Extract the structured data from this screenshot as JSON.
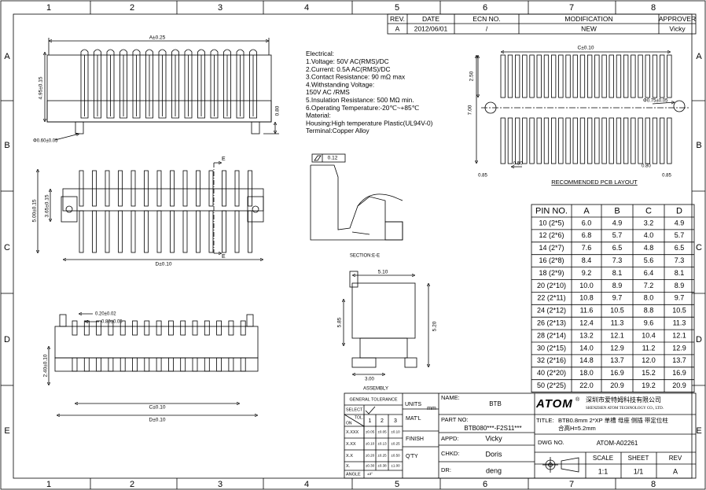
{
  "frame": {
    "columns": [
      "1",
      "2",
      "3",
      "4",
      "5",
      "6",
      "7",
      "8"
    ],
    "rows": [
      "A",
      "B",
      "C",
      "D",
      "E"
    ]
  },
  "revision": {
    "headers": [
      "REV.",
      "DATE",
      "ECN NO.",
      "MODIFICATION",
      "APPROVER"
    ],
    "row": [
      "A",
      "2012/06/01",
      "/",
      "NEW",
      "Vicky"
    ]
  },
  "notes": [
    "Electrical:",
    " 1.Voltage: 50V AC(RMS)/DC",
    " 2.Current: 0.5A AC(RMS)/DC",
    " 3.Contact Resistance: 90 mΩ max",
    " 4.Withstanding Voltage:",
    "    150V AC /RMS",
    " 5.Insulation Resistance: 500 MΩ min.",
    " 6.Operating Temperature:-20℃~+85℃",
    "Material:",
    "Housing:High temperature Plastic(UL94V-0)",
    "Terminal:Copper Alloy"
  ],
  "views": {
    "section_label": "SECTION:E-E",
    "assembly_label": "ASSEMBLY",
    "pcb_layout_label": "RECOMMENDED PCB LAYOUT",
    "flatness": "0.12"
  },
  "dimensions": {
    "front": [
      "A±0.25",
      "4.95±0.15",
      "0.80",
      "Φ0.60±0.05"
    ],
    "top": [
      "E",
      "E",
      "5.00±0.15",
      "3.65±0.15",
      "D±0.10"
    ],
    "side": [
      "0.20±0.02",
      "0.80±0.05",
      "2.40±0.10",
      "C±0.10",
      "D±0.10"
    ],
    "assembly": [
      "5.10",
      "5.85",
      "5.20",
      "3.00"
    ],
    "pcb": [
      "C±0.10",
      "2.50",
      "7.00",
      "Φ0.75±0.05",
      "0.50",
      "0.80",
      "0.85",
      "0.85"
    ]
  },
  "dimension_table": {
    "headers": [
      "PIN NO.",
      "A",
      "B",
      "C",
      "D"
    ],
    "rows": [
      [
        "10 (2*5)",
        "6.0",
        "4.9",
        "3.2",
        "4.9"
      ],
      [
        "12 (2*6)",
        "6.8",
        "5.7",
        "4.0",
        "5.7"
      ],
      [
        "14 (2*7)",
        "7.6",
        "6.5",
        "4.8",
        "6.5"
      ],
      [
        "16 (2*8)",
        "8.4",
        "7.3",
        "5.6",
        "7.3"
      ],
      [
        "18 (2*9)",
        "9.2",
        "8.1",
        "6.4",
        "8.1"
      ],
      [
        "20 (2*10)",
        "10.0",
        "8.9",
        "7.2",
        "8.9"
      ],
      [
        "22 (2*11)",
        "10.8",
        "9.7",
        "8.0",
        "9.7"
      ],
      [
        "24 (2*12)",
        "11.6",
        "10.5",
        "8.8",
        "10.5"
      ],
      [
        "26 (2*13)",
        "12.4",
        "11.3",
        "9.6",
        "11.3"
      ],
      [
        "28 (2*14)",
        "13.2",
        "12.1",
        "10.4",
        "12.1"
      ],
      [
        "30 (2*15)",
        "14.0",
        "12.9",
        "11.2",
        "12.9"
      ],
      [
        "32 (2*16)",
        "14.8",
        "13.7",
        "12.0",
        "13.7"
      ],
      [
        "40 (2*20)",
        "18.0",
        "16.9",
        "15.2",
        "16.9"
      ],
      [
        "50 (2*25)",
        "22.0",
        "20.9",
        "19.2",
        "20.9"
      ]
    ]
  },
  "tolerance": {
    "title": "GENERAL TOLERANCE",
    "select": "SELECT",
    "tol": "TOL.",
    "on": "ON",
    "columns": [
      "1",
      "2",
      "3"
    ],
    "rows": [
      [
        "X.XXX",
        "±0.05",
        "±0.05",
        "±0.10"
      ],
      [
        "X.XX",
        "±0.10",
        "±0.13",
        "±0.25"
      ],
      [
        "X.X",
        "±0.20",
        "±0.25",
        "±0.50"
      ],
      [
        "X.",
        "±0.30",
        "±0.38",
        "±1.00"
      ],
      [
        "ANGLE",
        "±3°"
      ]
    ]
  },
  "title_block": {
    "units_label": "UNITS",
    "units": "mm",
    "name_label": "NAME:",
    "name": "BTB",
    "material_label": "MAT'L",
    "part_no_label": "PART NO:",
    "part_no": "BTB080***-F2S11***",
    "finish_label": "FINISH",
    "approved_label": "APPD:",
    "approved": "Vicky",
    "quantity_label": "Q'TY",
    "checked_label": "CHKD:",
    "checked": "Doris",
    "drawn_label": "DR:",
    "drawn": "deng",
    "logo": "ATOM",
    "logo_mark": "®",
    "company_cn": "深圳市爱特姆科技有限公司",
    "company_en": "SHENZHEN ATOM TECHNOLOGY CO., LTD.",
    "title_label": "TITLE:",
    "title": "BTB0.8mm  2*XP  单槽  母座  侧插  带定位柱",
    "title_line2": "合高H=5.2mm",
    "dwg_no_label": "DWG NO.",
    "dwg_no": "ATOM-A02261",
    "scale_label": "SCALE",
    "scale": "1:1",
    "sheet_label": "SHEET",
    "sheet": "1/1",
    "rev_label": "REV",
    "rev": "A"
  }
}
